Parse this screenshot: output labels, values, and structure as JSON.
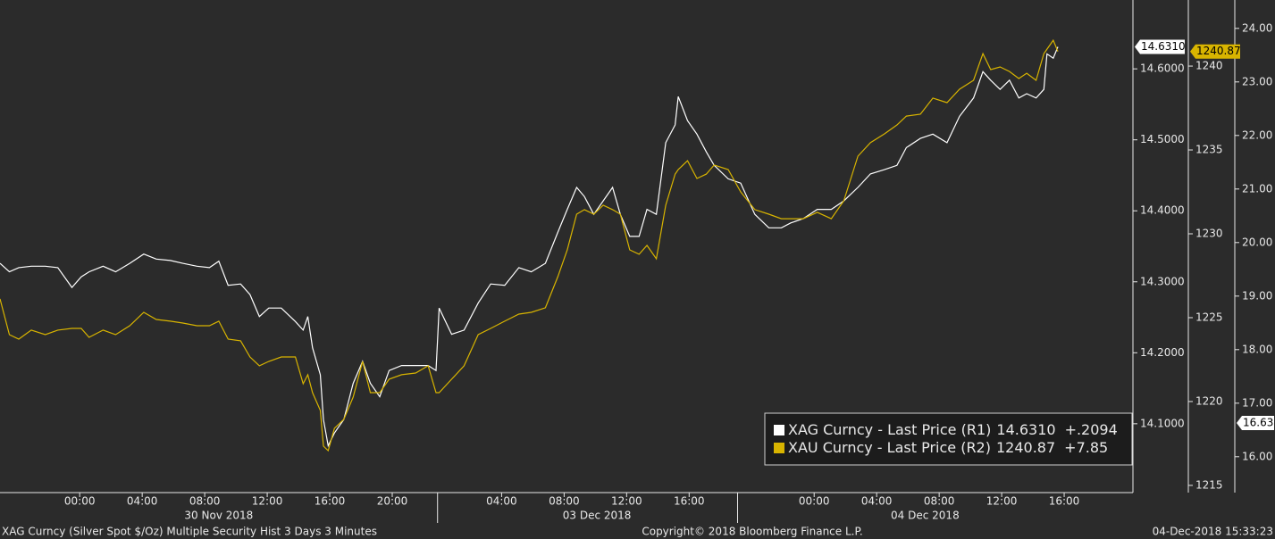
{
  "chart_data": {
    "type": "line",
    "xlim": [
      -5.1,
      67.4
    ],
    "xticks": [
      {
        "value": 0,
        "label": "00:00"
      },
      {
        "value": 4,
        "label": "04:00"
      },
      {
        "value": 8,
        "label": "08:00"
      },
      {
        "value": 12,
        "label": "12:00"
      },
      {
        "value": 16,
        "label": "16:00"
      },
      {
        "value": 20,
        "label": "20:00"
      },
      {
        "value": 27,
        "label": "04:00"
      },
      {
        "value": 31,
        "label": "08:00"
      },
      {
        "value": 35,
        "label": "12:00"
      },
      {
        "value": 39,
        "label": "16:00"
      },
      {
        "value": 47,
        "label": "00:00"
      },
      {
        "value": 51,
        "label": "04:00"
      },
      {
        "value": 55,
        "label": "08:00"
      },
      {
        "value": 59,
        "label": "12:00"
      },
      {
        "value": 63,
        "label": "16:00"
      }
    ],
    "day_labels": [
      {
        "value": 8.9,
        "label": "30 Nov 2018"
      },
      {
        "value": 33.1,
        "label": "03 Dec 2018"
      },
      {
        "value": 54.1,
        "label": "04 Dec 2018"
      }
    ],
    "day_separators": [
      22.9,
      42.1
    ],
    "x": [
      -5.1,
      -4.5,
      -3.9,
      -3.1,
      -2.2,
      -1.4,
      -0.5,
      0.1,
      0.6,
      1.5,
      2.3,
      3.2,
      4.1,
      4.9,
      5.8,
      6.6,
      7.5,
      8.3,
      8.9,
      9.5,
      10.3,
      10.9,
      11.5,
      12.1,
      12.9,
      13.8,
      14.3,
      14.6,
      14.9,
      15.4,
      15.6,
      15.9,
      16.3,
      16.9,
      17.5,
      18.1,
      18.6,
      19.2,
      19.8,
      20.6,
      21.5,
      22.3,
      22.8,
      23.0,
      23.8,
      24.6,
      25.5,
      26.3,
      27.2,
      28.1,
      28.9,
      29.8,
      30.6,
      31.2,
      31.8,
      32.3,
      32.9,
      33.5,
      34.1,
      34.6,
      35.2,
      35.8,
      36.3,
      36.9,
      37.5,
      38.1,
      38.3,
      38.9,
      39.5,
      40.1,
      40.6,
      41.5,
      42.3,
      43.2,
      44.1,
      44.9,
      45.5,
      46.3,
      47.2,
      48.1,
      48.9,
      49.8,
      50.6,
      51.5,
      52.3,
      52.9,
      53.8,
      54.6,
      55.5,
      56.3,
      57.2,
      57.8,
      58.3,
      58.9,
      59.5,
      60.1,
      60.6,
      61.2,
      61.7,
      61.9,
      62.3,
      62.6
    ],
    "ylim": [
      14.003,
      14.697
    ],
    "yticks": [
      {
        "value": 14.1,
        "label": "14.1000"
      },
      {
        "value": 14.2,
        "label": "14.2000"
      },
      {
        "value": 14.3,
        "label": "14.3000"
      },
      {
        "value": 14.4,
        "label": "14.4000"
      },
      {
        "value": 14.5,
        "label": "14.5000"
      },
      {
        "value": 14.6,
        "label": "14.6000"
      }
    ],
    "y2lim": [
      1214.57,
      1243.94
    ],
    "y2ticks": [
      1215,
      1220,
      1225,
      1230,
      1235,
      1240
    ],
    "y3lim": [
      15.33,
      24.53
    ],
    "y3ticks": [
      {
        "value": 16,
        "label": "16.00"
      },
      {
        "value": 17,
        "label": "17.00"
      },
      {
        "value": 18,
        "label": "18.00"
      },
      {
        "value": 19,
        "label": "19.00"
      },
      {
        "value": 20,
        "label": "20.00"
      },
      {
        "value": 21,
        "label": "21.00"
      },
      {
        "value": 22,
        "label": "22.00"
      },
      {
        "value": 23,
        "label": "23.00"
      },
      {
        "value": 24,
        "label": "24.00"
      }
    ],
    "y3_last": {
      "value": 16.63,
      "label": "16.63"
    },
    "series": [
      {
        "name": "XAG Curncy - Last Price (R1)",
        "color": "#ffffff",
        "last_label": "14.6310",
        "change": "+.2094",
        "values": [
          14.326,
          14.314,
          14.32,
          14.322,
          14.322,
          14.32,
          14.292,
          14.307,
          14.314,
          14.322,
          14.314,
          14.326,
          14.339,
          14.332,
          14.33,
          14.326,
          14.322,
          14.32,
          14.329,
          14.295,
          14.297,
          14.282,
          14.251,
          14.263,
          14.263,
          14.244,
          14.232,
          14.251,
          14.207,
          14.169,
          14.106,
          14.069,
          14.087,
          14.106,
          14.157,
          14.188,
          14.157,
          14.138,
          14.175,
          14.182,
          14.182,
          14.182,
          14.175,
          14.263,
          14.226,
          14.232,
          14.27,
          14.297,
          14.295,
          14.32,
          14.314,
          14.326,
          14.37,
          14.402,
          14.433,
          14.42,
          14.395,
          14.414,
          14.433,
          14.395,
          14.364,
          14.364,
          14.402,
          14.395,
          14.496,
          14.521,
          14.561,
          14.527,
          14.508,
          14.483,
          14.464,
          14.445,
          14.439,
          14.395,
          14.376,
          14.376,
          14.383,
          14.389,
          14.402,
          14.402,
          14.414,
          14.433,
          14.452,
          14.458,
          14.464,
          14.489,
          14.502,
          14.508,
          14.496,
          14.533,
          14.559,
          14.596,
          14.584,
          14.571,
          14.584,
          14.559,
          14.565,
          14.559,
          14.571,
          14.621,
          14.615,
          14.631
        ]
      },
      {
        "name": "XAU Curncy - Last Price (R2)",
        "color": "#d8b400",
        "axis": "y2",
        "last_label": "1240.87",
        "change": "+7.85",
        "values": [
          1226.12,
          1223.99,
          1223.72,
          1224.26,
          1223.99,
          1224.26,
          1224.36,
          1224.36,
          1223.83,
          1224.26,
          1223.99,
          1224.52,
          1225.32,
          1224.89,
          1224.79,
          1224.68,
          1224.52,
          1224.52,
          1224.79,
          1223.72,
          1223.62,
          1222.66,
          1222.13,
          1222.39,
          1222.66,
          1222.66,
          1221.06,
          1221.6,
          1220.53,
          1219.47,
          1217.34,
          1217.07,
          1218.4,
          1218.94,
          1220.27,
          1222.39,
          1220.53,
          1220.53,
          1221.33,
          1221.6,
          1221.7,
          1222.13,
          1220.53,
          1220.53,
          1221.33,
          1222.13,
          1223.99,
          1224.36,
          1224.79,
          1225.21,
          1225.32,
          1225.59,
          1227.45,
          1229.04,
          1231.17,
          1231.44,
          1231.17,
          1231.7,
          1231.44,
          1231.17,
          1229.04,
          1228.78,
          1229.31,
          1228.51,
          1231.7,
          1233.56,
          1233.83,
          1234.36,
          1233.3,
          1233.56,
          1234.1,
          1233.83,
          1232.5,
          1231.44,
          1231.17,
          1230.9,
          1230.9,
          1230.9,
          1231.28,
          1230.9,
          1231.97,
          1234.63,
          1235.43,
          1235.96,
          1236.49,
          1237.02,
          1237.13,
          1238.09,
          1237.82,
          1238.62,
          1239.15,
          1240.74,
          1239.79,
          1239.95,
          1239.68,
          1239.26,
          1239.57,
          1239.15,
          1240.74,
          1241.01,
          1241.54,
          1240.87
        ]
      }
    ]
  },
  "footer": {
    "left": "XAG Curncy (Silver Spot  $/Oz) Multiple Security Hist   3 Days 3 Minutes",
    "center": "Copyright© 2018 Bloomberg Finance L.P.",
    "right": "04-Dec-2018 15:33:23"
  }
}
